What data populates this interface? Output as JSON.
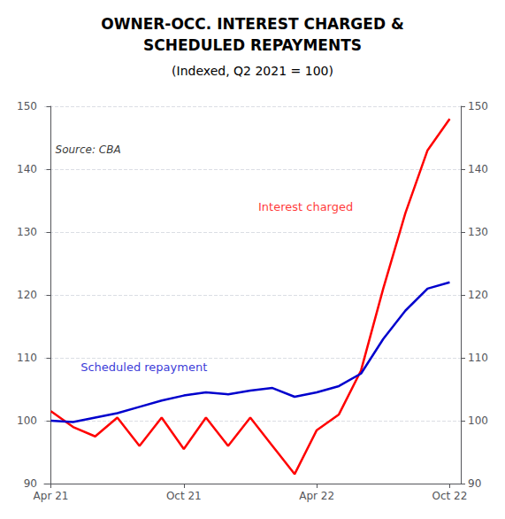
{
  "chart_data": {
    "type": "line",
    "title": "OWNER-OCC. INTEREST CHARGED &\nSCHEDULED REPAYMENTS",
    "subtitle": "(Indexed, Q2 2021 = 100)",
    "x": [
      0,
      1,
      2,
      3,
      4,
      5,
      6,
      7,
      8,
      9,
      10,
      11,
      12,
      13,
      14,
      15,
      16,
      17,
      18
    ],
    "series": [
      {
        "name": "Interest charged",
        "color": "#ff0000",
        "values": [
          101.5,
          99.0,
          97.5,
          100.5,
          96.0,
          100.5,
          95.5,
          100.5,
          96.0,
          100.5,
          96.0,
          91.5,
          98.5,
          101.0,
          108.0,
          121.0,
          133.0,
          143.0,
          148.0
        ]
      },
      {
        "name": "Scheduled repayment",
        "color": "#0000cd",
        "values": [
          100.0,
          99.8,
          100.5,
          101.2,
          102.2,
          103.2,
          104.0,
          104.5,
          104.2,
          104.8,
          105.2,
          103.8,
          104.5,
          105.5,
          107.5,
          113.0,
          117.5,
          121.0,
          122.0
        ]
      }
    ],
    "xlim": [
      -0.3,
      18.5
    ],
    "xticks": [
      {
        "value": 0,
        "label": "Apr 21"
      },
      {
        "value": 6,
        "label": "Oct 21"
      },
      {
        "value": 12,
        "label": "Apr 22"
      },
      {
        "value": 18,
        "label": "Oct 22"
      }
    ],
    "ylim": [
      90,
      150
    ],
    "yticks": [
      90,
      100,
      110,
      120,
      130,
      140,
      150
    ],
    "y2lim": [
      90,
      150
    ],
    "y2ticks": [
      90,
      100,
      110,
      120,
      130,
      140,
      150
    ],
    "grid": true,
    "annotations": [
      {
        "text": "Interest charged",
        "x": 11.5,
        "y": 134
      },
      {
        "text": "Scheduled repayment",
        "x": 4.2,
        "y": 108.5
      },
      {
        "text": "Source: CBA",
        "x": 0.2,
        "y": 144
      }
    ]
  }
}
